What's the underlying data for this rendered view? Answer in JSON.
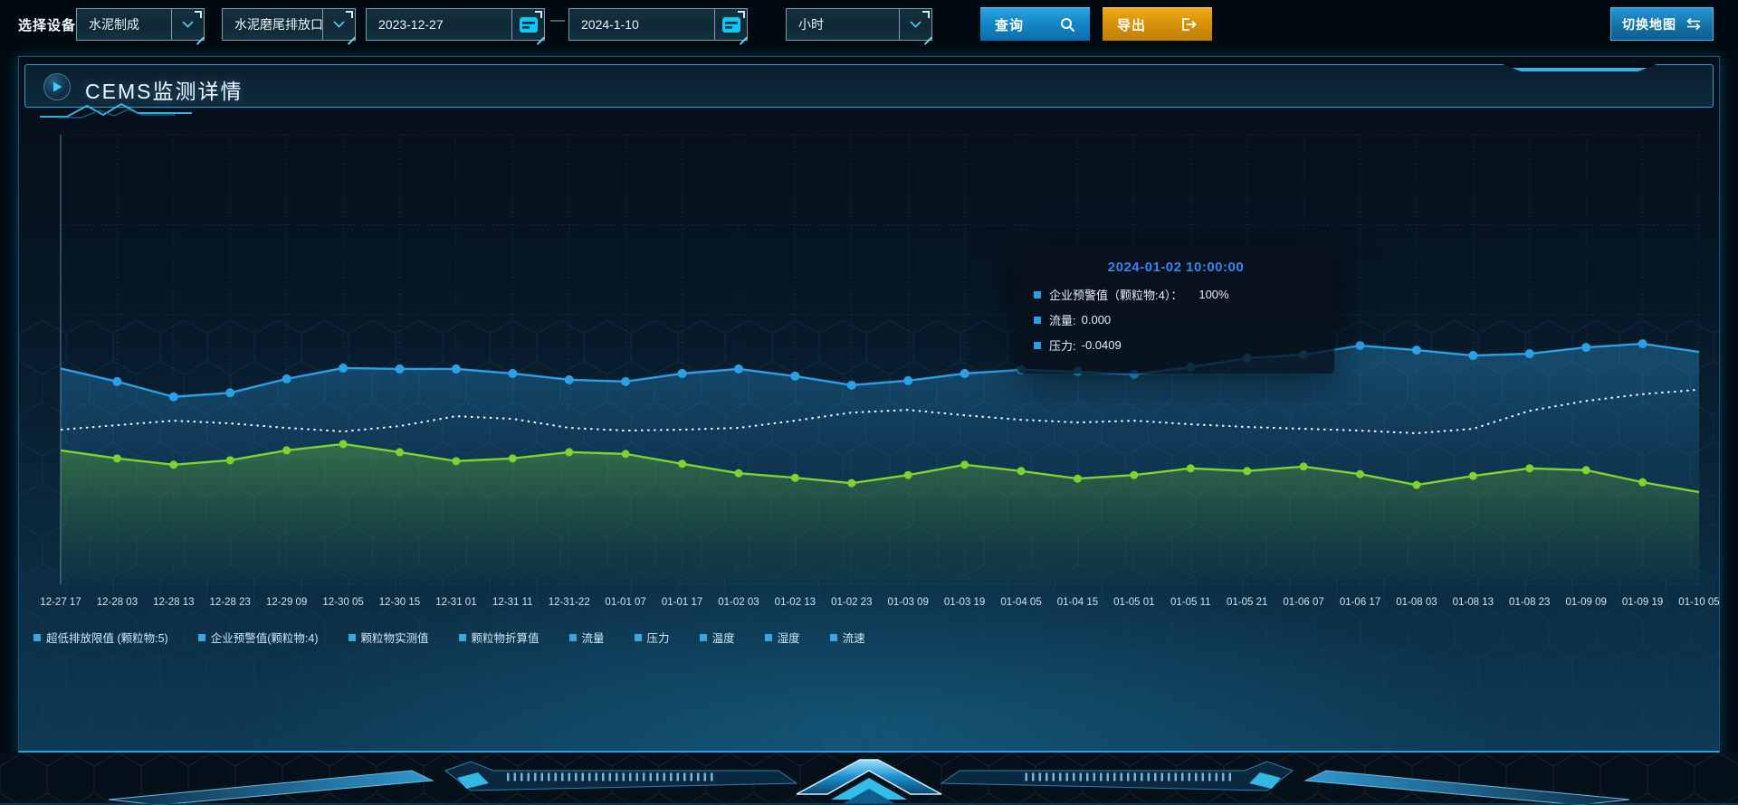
{
  "toolbar": {
    "device_label": "选择设备",
    "dropdowns": [
      {
        "value": "水泥制成"
      },
      {
        "value": "水泥磨尾排放口"
      },
      {
        "value": "小时"
      }
    ],
    "date_start": "2023-12-27",
    "date_range_separator": "—",
    "date_end": "2024-1-10",
    "query_label": "查询",
    "export_label": "导出",
    "switch_map_label": "切换地图"
  },
  "panel": {
    "title": "CEMS监测详情"
  },
  "tooltip": {
    "title": "2024-01-02 10:00:00",
    "items": [
      {
        "label": "企业预警值（颗粒物:4）：",
        "value": "100%"
      },
      {
        "label": "流量:",
        "value": "0.000"
      },
      {
        "label": "压力:",
        "value": "-0.0409"
      }
    ]
  },
  "legend": [
    "超低排放限值 (颗粒物:5)",
    "企业预警值(颗粒物:4)",
    "颗粒物实测值",
    "颗粒物折算值",
    "流量",
    "压力",
    "温度",
    "湿度",
    "流速"
  ],
  "colors": {
    "accent_cyan": "#35c9f0",
    "button_blue": "#1488c6",
    "button_orange": "#d99309",
    "series_blue": "#2aa0e8",
    "series_green": "#7ed32f",
    "series_white": "#eef6fa",
    "tooltip_title_blue": "#3c82f0"
  },
  "chart_data": {
    "type": "line",
    "title": "",
    "xlabel": "",
    "ylabel": "",
    "ylim": [
      0,
      100
    ],
    "grid": true,
    "legend_position": "bottom",
    "note": "y-axis has no tick labels; series values are estimated as percent of plot height from the bottom axis",
    "x_labels": [
      "12-27 17",
      "12-28 03",
      "12-28 13",
      "12-28 23",
      "12-29 09",
      "12-30 05",
      "12-30 15",
      "12-31 01",
      "12-31 11",
      "12-31-22",
      "01-01 07",
      "01-01 17",
      "01-02 03",
      "01-02 13",
      "01-02 23",
      "01-03 09",
      "01-03 19",
      "01-04 05",
      "01-04 15",
      "01-05 01",
      "01-05 11",
      "01-05 21",
      "01-06 07",
      "01-06 17",
      "01-08 03",
      "01-08 13",
      "01-08 23",
      "01-09 09",
      "01-09 19",
      "01-10 05"
    ],
    "series": [
      {
        "id": "blue",
        "name": "series-blue-solid-with-markers",
        "color": "#2aa0e8",
        "style": "solid",
        "markers": true,
        "area": true,
        "values": [
          48.0,
          45.1,
          41.7,
          42.6,
          45.7,
          48.1,
          47.9,
          47.9,
          46.9,
          45.5,
          45.1,
          46.9,
          47.9,
          46.3,
          44.3,
          45.3,
          46.9,
          47.7,
          47.3,
          46.7,
          48.3,
          50.3,
          51.1,
          53.1,
          52.1,
          50.9,
          51.3,
          52.7,
          53.5,
          51.7
        ]
      },
      {
        "id": "white",
        "name": "series-white-dotted",
        "color": "#eef6fa",
        "style": "dotted",
        "markers": false,
        "area": false,
        "values": [
          34.4,
          35.4,
          36.4,
          35.8,
          34.8,
          34.0,
          35.2,
          37.4,
          36.8,
          34.8,
          34.2,
          34.4,
          34.8,
          36.4,
          38.2,
          38.8,
          37.6,
          36.6,
          36.0,
          36.4,
          35.6,
          35.0,
          34.6,
          34.2,
          33.6,
          34.6,
          38.6,
          40.8,
          42.3,
          43.3
        ]
      },
      {
        "id": "green",
        "name": "series-green-solid-with-markers",
        "color": "#7ed32f",
        "style": "solid",
        "markers": true,
        "area": true,
        "values": [
          29.8,
          28.0,
          26.6,
          27.6,
          29.8,
          31.2,
          29.4,
          27.4,
          28.0,
          29.4,
          29.0,
          26.8,
          24.7,
          23.7,
          22.5,
          24.3,
          26.6,
          25.2,
          23.5,
          24.3,
          25.8,
          25.2,
          26.2,
          24.5,
          22.1,
          24.1,
          25.8,
          25.4,
          22.7,
          20.5
        ]
      }
    ]
  }
}
